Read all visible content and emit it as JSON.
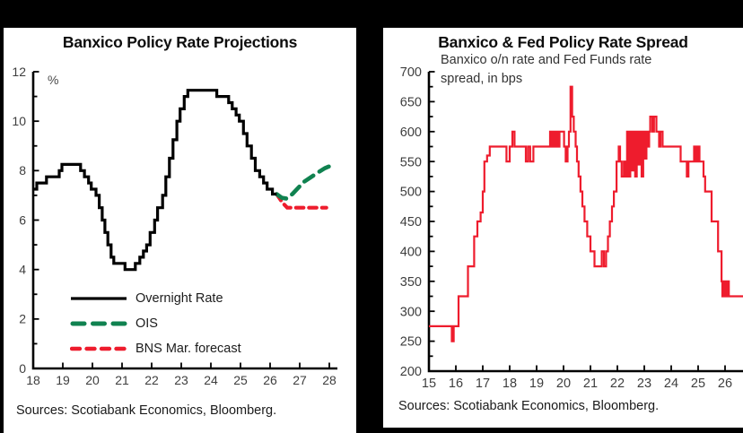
{
  "page": {
    "background_color": "#000000",
    "panel_color": "#ffffff",
    "accent_red": "#ee1c2d",
    "accent_green": "#108250"
  },
  "chart_data": [
    {
      "type": "line",
      "title": "Banxico Policy Rate Projections",
      "unit_label": "%",
      "xlabel": "",
      "ylabel": "%",
      "xlim": [
        18,
        28.4
      ],
      "ylim": [
        0,
        12
      ],
      "x_ticks": [
        18,
        19,
        20,
        21,
        22,
        23,
        24,
        25,
        26,
        27,
        28
      ],
      "y_ticks": [
        0,
        2,
        4,
        6,
        8,
        10,
        12
      ],
      "y_minor_ticks": [
        1,
        3,
        5,
        7,
        9,
        11
      ],
      "grid": false,
      "legend_position": "inside-bottom-left",
      "sources": "Sources: Scotiabank Economics, Bloomberg.",
      "series": [
        {
          "name": "Overnight Rate",
          "color": "#000000",
          "line_style": "solid",
          "step": true,
          "points": [
            [
              18.0,
              7.25
            ],
            [
              18.12,
              7.5
            ],
            [
              18.45,
              7.75
            ],
            [
              18.88,
              8.0
            ],
            [
              18.97,
              8.25
            ],
            [
              19.6,
              8.0
            ],
            [
              19.73,
              7.75
            ],
            [
              19.87,
              7.5
            ],
            [
              19.96,
              7.25
            ],
            [
              20.12,
              7.0
            ],
            [
              20.23,
              6.5
            ],
            [
              20.33,
              6.0
            ],
            [
              20.42,
              5.5
            ],
            [
              20.52,
              5.0
            ],
            [
              20.63,
              4.5
            ],
            [
              20.72,
              4.25
            ],
            [
              21.1,
              4.0
            ],
            [
              21.45,
              4.25
            ],
            [
              21.6,
              4.5
            ],
            [
              21.72,
              4.75
            ],
            [
              21.83,
              5.0
            ],
            [
              21.95,
              5.5
            ],
            [
              22.1,
              6.0
            ],
            [
              22.2,
              6.5
            ],
            [
              22.37,
              7.0
            ],
            [
              22.48,
              7.75
            ],
            [
              22.6,
              8.5
            ],
            [
              22.72,
              9.25
            ],
            [
              22.85,
              10.0
            ],
            [
              22.96,
              10.5
            ],
            [
              23.1,
              11.0
            ],
            [
              23.22,
              11.25
            ],
            [
              24.2,
              11.0
            ],
            [
              24.6,
              10.75
            ],
            [
              24.72,
              10.5
            ],
            [
              24.85,
              10.25
            ],
            [
              24.96,
              10.0
            ],
            [
              25.1,
              9.5
            ],
            [
              25.22,
              9.0
            ],
            [
              25.37,
              8.5
            ],
            [
              25.5,
              8.0
            ],
            [
              25.65,
              7.75
            ],
            [
              25.78,
              7.5
            ],
            [
              25.9,
              7.25
            ],
            [
              26.08,
              7.05
            ],
            [
              26.22,
              7.05
            ]
          ]
        },
        {
          "name": "OIS",
          "color": "#108250",
          "line_style": "dashed",
          "step": false,
          "points": [
            [
              26.22,
              7.05
            ],
            [
              26.4,
              6.9
            ],
            [
              26.55,
              6.87
            ],
            [
              26.75,
              7.05
            ],
            [
              26.95,
              7.3
            ],
            [
              27.15,
              7.55
            ],
            [
              27.4,
              7.75
            ],
            [
              27.65,
              7.95
            ],
            [
              27.85,
              8.1
            ],
            [
              28.05,
              8.2
            ]
          ]
        },
        {
          "name": "BNS Mar. forecast",
          "color": "#ee1c2d",
          "line_style": "dashed",
          "step": false,
          "points": [
            [
              26.22,
              7.05
            ],
            [
              26.42,
              6.7
            ],
            [
              26.58,
              6.5
            ],
            [
              27.9,
              6.5
            ]
          ]
        }
      ]
    },
    {
      "type": "line",
      "title": "Banxico & Fed Policy Rate Spread",
      "annotation": [
        "Banxico o/n rate and Fed Funds rate",
        "spread, in bps"
      ],
      "xlabel": "",
      "ylabel": "bps",
      "xlim": [
        15,
        26.7
      ],
      "ylim": [
        200,
        700
      ],
      "x_ticks": [
        15,
        16,
        17,
        18,
        19,
        20,
        21,
        22,
        23,
        24,
        25,
        26
      ],
      "y_ticks": [
        200,
        250,
        300,
        350,
        400,
        450,
        500,
        550,
        600,
        650,
        700
      ],
      "y_minor_ticks": [
        225,
        275,
        325,
        375,
        425,
        475,
        525,
        575,
        625,
        675
      ],
      "grid": false,
      "legend_position": "none",
      "sources": "Sources: Scotiabank Economics, Bloomberg.",
      "series": [
        {
          "name": "Banxico o/n rate and Fed Funds rate spread",
          "color": "#ee1c2d",
          "line_style": "solid",
          "step": true,
          "points": [
            [
              15.0,
              275
            ],
            [
              15.85,
              250
            ],
            [
              15.92,
              275
            ],
            [
              16.1,
              325
            ],
            [
              16.45,
              375
            ],
            [
              16.68,
              425
            ],
            [
              16.8,
              450
            ],
            [
              16.92,
              465
            ],
            [
              17.0,
              500
            ],
            [
              17.06,
              550
            ],
            [
              17.16,
              560
            ],
            [
              17.26,
              575
            ],
            [
              17.88,
              550
            ],
            [
              18.0,
              575
            ],
            [
              18.1,
              600
            ],
            [
              18.18,
              575
            ],
            [
              18.6,
              550
            ],
            [
              18.68,
              575
            ],
            [
              18.76,
              550
            ],
            [
              18.88,
              575
            ],
            [
              19.5,
              600
            ],
            [
              19.55,
              575
            ],
            [
              19.6,
              600
            ],
            [
              19.66,
              575
            ],
            [
              19.72,
              600
            ],
            [
              19.78,
              575
            ],
            [
              19.85,
              600
            ],
            [
              20.02,
              575
            ],
            [
              20.08,
              550
            ],
            [
              20.15,
              575
            ],
            [
              20.2,
              600
            ],
            [
              20.26,
              675
            ],
            [
              20.32,
              625
            ],
            [
              20.38,
              600
            ],
            [
              20.45,
              575
            ],
            [
              20.5,
              550
            ],
            [
              20.56,
              525
            ],
            [
              20.63,
              500
            ],
            [
              20.7,
              475
            ],
            [
              20.78,
              450
            ],
            [
              20.88,
              425
            ],
            [
              21.0,
              400
            ],
            [
              21.15,
              375
            ],
            [
              21.42,
              400
            ],
            [
              21.5,
              375
            ],
            [
              21.58,
              400
            ],
            [
              21.65,
              425
            ],
            [
              21.72,
              450
            ],
            [
              21.8,
              475
            ],
            [
              21.87,
              500
            ],
            [
              21.97,
              550
            ],
            [
              22.05,
              575
            ],
            [
              22.1,
              550
            ],
            [
              22.16,
              525
            ],
            [
              22.24,
              550
            ],
            [
              22.3,
              525
            ],
            [
              22.36,
              600
            ],
            [
              22.42,
              525
            ],
            [
              22.48,
              600
            ],
            [
              22.54,
              535
            ],
            [
              22.6,
              600
            ],
            [
              22.66,
              525
            ],
            [
              22.72,
              600
            ],
            [
              22.78,
              545
            ],
            [
              22.84,
              600
            ],
            [
              22.9,
              525
            ],
            [
              22.96,
              600
            ],
            [
              23.02,
              555
            ],
            [
              23.08,
              600
            ],
            [
              23.14,
              575
            ],
            [
              23.18,
              600
            ],
            [
              23.22,
              625
            ],
            [
              23.3,
              600
            ],
            [
              23.36,
              625
            ],
            [
              23.45,
              600
            ],
            [
              23.55,
              575
            ],
            [
              23.6,
              600
            ],
            [
              23.68,
              575
            ],
            [
              24.35,
              550
            ],
            [
              24.58,
              525
            ],
            [
              24.64,
              550
            ],
            [
              24.85,
              575
            ],
            [
              24.89,
              550
            ],
            [
              24.93,
              575
            ],
            [
              24.97,
              550
            ],
            [
              25.01,
              575
            ],
            [
              25.05,
              550
            ],
            [
              25.2,
              525
            ],
            [
              25.26,
              500
            ],
            [
              25.5,
              450
            ],
            [
              25.74,
              400
            ],
            [
              25.87,
              350
            ],
            [
              25.9,
              325
            ],
            [
              25.94,
              350
            ],
            [
              25.98,
              325
            ],
            [
              26.02,
              350
            ],
            [
              26.06,
              325
            ],
            [
              26.1,
              350
            ],
            [
              26.14,
              325
            ],
            [
              26.68,
              325
            ]
          ]
        }
      ]
    }
  ]
}
